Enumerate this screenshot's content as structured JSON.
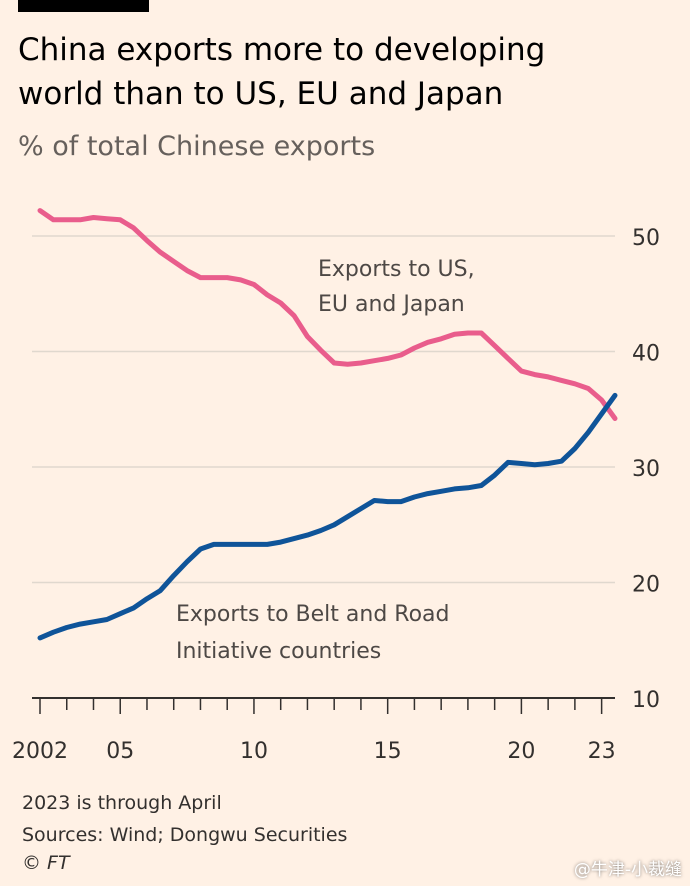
{
  "header": {
    "title_line1": "China exports more to developing",
    "title_line2": "world than to US, EU and Japan",
    "subtitle": "% of total Chinese exports"
  },
  "chart_data": {
    "type": "line",
    "title": "China exports more to developing world than to US, EU and Japan",
    "subtitle": "% of total Chinese exports",
    "ylim": [
      10,
      53
    ],
    "xlim": [
      2002,
      2023.5
    ],
    "y_ticks": [
      10,
      20,
      30,
      40,
      50
    ],
    "y_tick_labels": [
      "10",
      "20",
      "30",
      "40",
      "50"
    ],
    "x_ticks": [
      2002,
      2005,
      2010,
      2015,
      2020,
      2023
    ],
    "x_tick_labels": [
      "2002",
      "05",
      "10",
      "15",
      "20",
      "23"
    ],
    "grid": "horizontal",
    "colors": {
      "background": "#fff1e5",
      "series_us_eu_japan": "#e95d8c",
      "series_belt_road": "#0f5499",
      "gridline": "#e0d8ce",
      "axis": "#33302e"
    },
    "series": [
      {
        "name": "Exports to US, EU and Japan",
        "label_line1": "Exports to US,",
        "label_line2": "EU and Japan",
        "x": [
          2002,
          2002.5,
          2003,
          2003.5,
          2004,
          2004.5,
          2005,
          2005.5,
          2006,
          2006.5,
          2007,
          2007.5,
          2008,
          2008.5,
          2009,
          2009.5,
          2010,
          2010.5,
          2011,
          2011.5,
          2012,
          2012.5,
          2013,
          2013.5,
          2014,
          2014.5,
          2015,
          2015.5,
          2016,
          2016.5,
          2017,
          2017.5,
          2018,
          2018.5,
          2019,
          2019.5,
          2020,
          2020.5,
          2021,
          2021.5,
          2022,
          2022.5,
          2023,
          2023.5
        ],
        "values": [
          52.2,
          51.4,
          51.4,
          51.4,
          51.6,
          51.5,
          51.4,
          50.7,
          49.6,
          48.6,
          47.8,
          47.0,
          46.4,
          46.4,
          46.4,
          46.2,
          45.8,
          44.9,
          44.2,
          43.1,
          41.3,
          40.1,
          39.0,
          38.9,
          39.0,
          39.2,
          39.4,
          39.7,
          40.3,
          40.8,
          41.1,
          41.5,
          41.6,
          41.6,
          40.5,
          39.4,
          38.3,
          38.0,
          37.8,
          37.5,
          37.2,
          36.8,
          35.8,
          34.2
        ]
      },
      {
        "name": "Exports to Belt and Road Initiative countries",
        "label_line1": "Exports to Belt and Road",
        "label_line2": "Initiative countries",
        "x": [
          2002,
          2002.5,
          2003,
          2003.5,
          2004,
          2004.5,
          2005,
          2005.5,
          2006,
          2006.5,
          2007,
          2007.5,
          2008,
          2008.5,
          2009,
          2009.5,
          2010,
          2010.5,
          2011,
          2011.5,
          2012,
          2012.5,
          2013,
          2013.5,
          2014,
          2014.5,
          2015,
          2015.5,
          2016,
          2016.5,
          2017,
          2017.5,
          2018,
          2018.5,
          2019,
          2019.5,
          2020,
          2020.5,
          2021,
          2021.5,
          2022,
          2022.5,
          2023,
          2023.5
        ],
        "values": [
          15.2,
          15.7,
          16.1,
          16.4,
          16.6,
          16.8,
          17.3,
          17.8,
          18.6,
          19.3,
          20.6,
          21.8,
          22.9,
          23.3,
          23.3,
          23.3,
          23.3,
          23.3,
          23.5,
          23.8,
          24.1,
          24.5,
          25.0,
          25.7,
          26.4,
          27.1,
          27.0,
          27.0,
          27.4,
          27.7,
          27.9,
          28.1,
          28.2,
          28.4,
          29.3,
          30.4,
          30.3,
          30.2,
          30.3,
          30.5,
          31.6,
          33.0,
          34.6,
          36.2
        ]
      }
    ]
  },
  "footer": {
    "note": "2023 is through April",
    "sources": "Sources: Wind; Dongwu Securities",
    "copyright": "© FT"
  },
  "watermark": "@牛津-小裁缝"
}
